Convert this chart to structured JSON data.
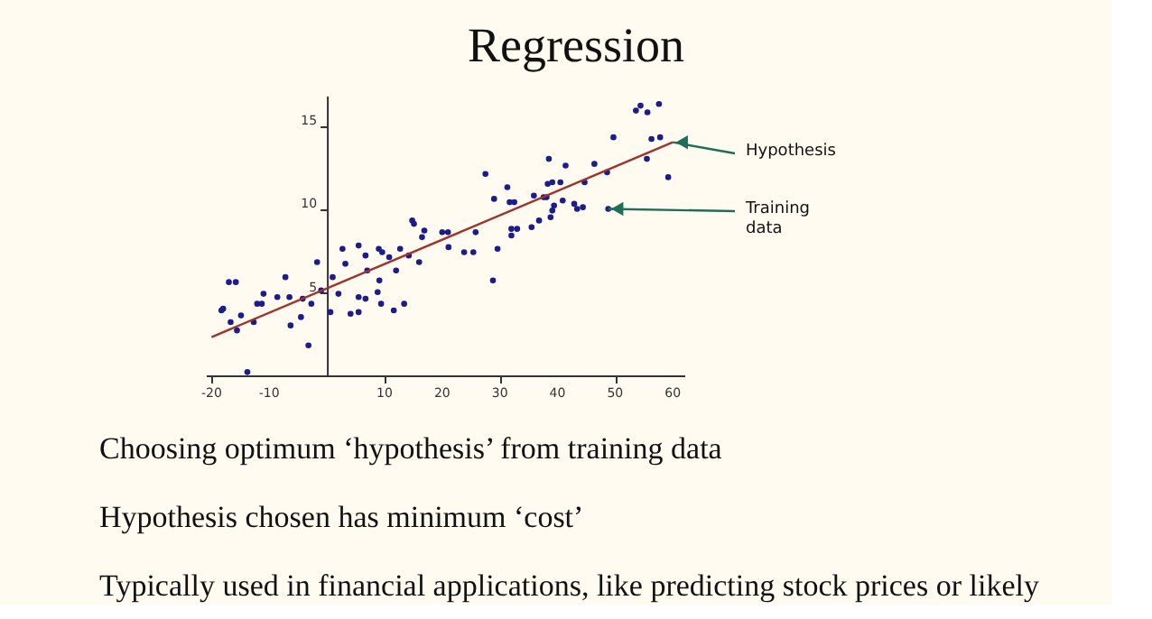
{
  "chart_data": {
    "type": "scatter",
    "title": "Regression",
    "xlim": [
      -21,
      62
    ],
    "ylim": [
      0,
      16.8
    ],
    "xticks": [
      -20,
      -10,
      10,
      20,
      30,
      40,
      50,
      60
    ],
    "yticks": [
      5,
      10,
      15
    ],
    "grid": false,
    "series": [
      {
        "color": "#1c1c8a",
        "marker": "circle",
        "x": [
          -18.3,
          -18.0,
          -17.0,
          -15.8,
          -16.7,
          -15.6,
          -14.9,
          -13.8,
          -12.7,
          -12.1,
          -11.3,
          -11.0,
          -8.6,
          -7.2,
          -6.5,
          -6.3,
          -4.5,
          -4.2,
          -3.2,
          -2.7,
          -1.7,
          -1.0,
          0.6,
          1.0,
          2.0,
          2.7,
          3.2,
          4.1,
          5.5,
          5.5,
          5.5,
          6.7,
          6.7,
          7.0,
          8.8,
          9.0,
          9.1,
          9.6,
          9.4,
          10.8,
          11.6,
          12.0,
          12.7,
          13.4,
          14.2,
          14.8,
          15.1,
          16.0,
          16.5,
          16.9,
          20.0,
          21.0,
          21.1,
          23.8,
          25.4,
          25.8,
          27.5,
          29.0,
          28.8,
          29.6,
          31.3,
          31.7,
          32.5,
          32.0,
          33.0,
          32.0,
          35.5,
          35.9,
          36.8,
          37.6,
          38.3,
          38.1,
          38.5,
          39.1,
          38.8,
          39.1,
          39.4,
          40.5,
          40.9,
          41.4,
          42.9,
          43.4,
          44.4,
          44.7,
          46.4,
          48.6,
          48.8,
          49.7,
          53.6,
          54.4,
          55.6,
          55.5,
          56.3,
          57.6,
          57.8,
          59.2
        ],
        "values": [
          3.9,
          4.0,
          5.6,
          5.6,
          3.2,
          2.7,
          3.6,
          0.2,
          3.2,
          4.3,
          4.3,
          4.9,
          4.7,
          5.9,
          4.7,
          3.0,
          3.5,
          4.6,
          1.8,
          4.3,
          6.8,
          5.1,
          3.8,
          5.9,
          4.9,
          7.6,
          6.7,
          3.7,
          7.8,
          4.7,
          3.8,
          7.2,
          4.6,
          6.3,
          5.0,
          7.6,
          5.7,
          7.4,
          4.3,
          7.1,
          3.9,
          6.3,
          7.6,
          4.3,
          7.2,
          9.3,
          9.1,
          6.8,
          8.3,
          8.7,
          8.6,
          8.6,
          7.7,
          7.4,
          7.4,
          8.6,
          12.1,
          10.6,
          5.7,
          7.6,
          11.3,
          10.4,
          10.4,
          8.8,
          8.8,
          8.4,
          8.9,
          10.8,
          9.3,
          10.7,
          11.5,
          10.7,
          13.0,
          11.6,
          9.5,
          9.9,
          10.2,
          11.6,
          10.5,
          12.6,
          10.3,
          10.0,
          10.1,
          11.6,
          12.7,
          12.2,
          10.0,
          14.3,
          15.9,
          16.2,
          15.8,
          13.0,
          14.2,
          16.3,
          14.3,
          11.9
        ]
      },
      {
        "type": "line",
        "color": "#a0322c",
        "x": [
          -20,
          60
        ],
        "values": [
          2.3,
          14.0
        ]
      }
    ],
    "annotations": [
      {
        "text": "Hypothesis",
        "x": 60,
        "y": 14.0
      },
      {
        "text": "Training data",
        "x": 48.8,
        "y": 10.0
      },
      "Choosing optimum ‘hypothesis’ from training data",
      "Hypothesis chosen has minimum ‘cost’",
      "Typically used in financial applications, like predicting stock prices or likely"
    ]
  }
}
